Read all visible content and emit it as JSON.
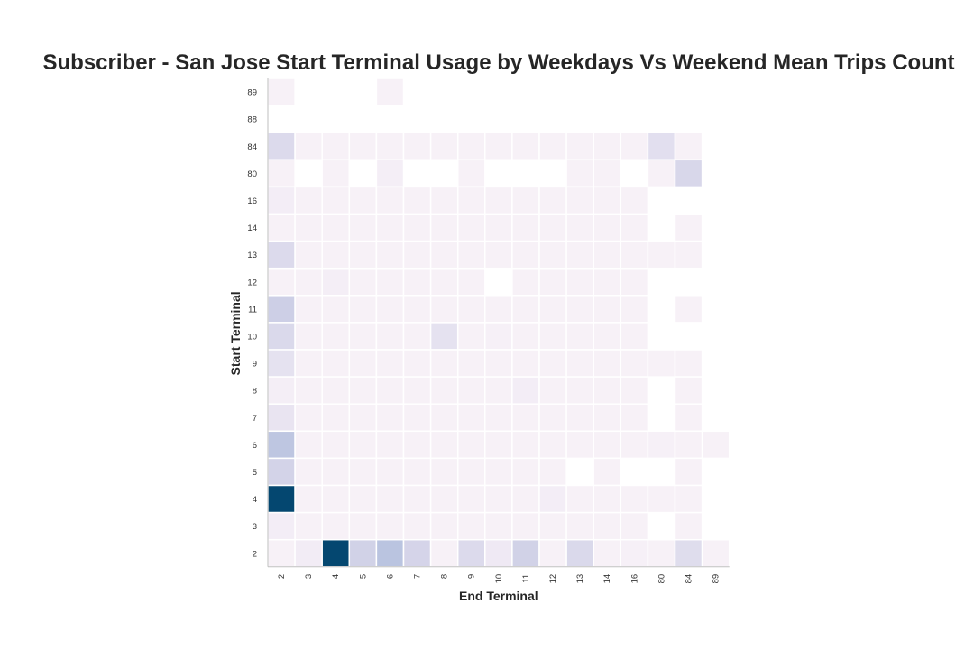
{
  "chart_data": {
    "type": "heatmap",
    "title": "Subscriber - San Jose Start Terminal Usage by Weekdays Vs Weekend Mean Trips Count",
    "xlabel": "End Terminal",
    "ylabel": "Start Terminal",
    "x_categories": [
      "2",
      "3",
      "4",
      "5",
      "6",
      "7",
      "8",
      "9",
      "10",
      "11",
      "12",
      "13",
      "14",
      "16",
      "80",
      "84",
      "89"
    ],
    "y_categories": [
      "89",
      "88",
      "84",
      "80",
      "16",
      "14",
      "13",
      "12",
      "11",
      "10",
      "9",
      "8",
      "7",
      "6",
      "5",
      "4",
      "3",
      "2"
    ],
    "values": [
      [
        1,
        null,
        null,
        null,
        1,
        null,
        null,
        null,
        null,
        null,
        null,
        null,
        null,
        null,
        null,
        null,
        null
      ],
      [
        null,
        null,
        null,
        null,
        null,
        null,
        null,
        null,
        null,
        null,
        null,
        null,
        null,
        null,
        null,
        null,
        null
      ],
      [
        12,
        1,
        1,
        1,
        1,
        1,
        1,
        1,
        1,
        1,
        1,
        1,
        1,
        1,
        10,
        1,
        null
      ],
      [
        1,
        null,
        1,
        null,
        3,
        null,
        null,
        1,
        null,
        null,
        null,
        1,
        1,
        null,
        1,
        14,
        null
      ],
      [
        4,
        1,
        1,
        1,
        1,
        1,
        1,
        1,
        1,
        1,
        1,
        1,
        1,
        1,
        null,
        null,
        null
      ],
      [
        1,
        1,
        1,
        1,
        1,
        1,
        1,
        1,
        1,
        1,
        1,
        1,
        1,
        1,
        null,
        1,
        null
      ],
      [
        12,
        1,
        1,
        1,
        1,
        1,
        1,
        1,
        1,
        1,
        1,
        1,
        1,
        1,
        1,
        1,
        null
      ],
      [
        1,
        1,
        3,
        1,
        1,
        1,
        1,
        1,
        null,
        1,
        1,
        1,
        1,
        1,
        null,
        null,
        null
      ],
      [
        20,
        1,
        1,
        1,
        1,
        1,
        1,
        1,
        1,
        1,
        1,
        1,
        1,
        1,
        null,
        1,
        null
      ],
      [
        13,
        1,
        1,
        1,
        1,
        1,
        9,
        1,
        2,
        1,
        1,
        1,
        1,
        1,
        null,
        null,
        null
      ],
      [
        9,
        1,
        1,
        1,
        1,
        1,
        1,
        1,
        1,
        1,
        1,
        1,
        1,
        1,
        1,
        1,
        null
      ],
      [
        3,
        1,
        1,
        1,
        1,
        1,
        1,
        1,
        1,
        4,
        1,
        1,
        1,
        1,
        null,
        1,
        null
      ],
      [
        8,
        1,
        1,
        1,
        1,
        1,
        1,
        1,
        1,
        1,
        1,
        1,
        1,
        1,
        null,
        1,
        null
      ],
      [
        28,
        1,
        1,
        1,
        1,
        1,
        1,
        1,
        1,
        1,
        1,
        1,
        1,
        1,
        2,
        1,
        1
      ],
      [
        17,
        1,
        1,
        1,
        1,
        1,
        1,
        1,
        1,
        1,
        1,
        null,
        1,
        null,
        null,
        1,
        null
      ],
      [
        100,
        1,
        1,
        1,
        1,
        1,
        1,
        1,
        1,
        1,
        4,
        1,
        1,
        1,
        1,
        1,
        null
      ],
      [
        4,
        1,
        1,
        1,
        1,
        1,
        1,
        1,
        1,
        1,
        1,
        1,
        1,
        1,
        null,
        1,
        null
      ],
      [
        1,
        5,
        100,
        18,
        30,
        16,
        1,
        12,
        6,
        18,
        1,
        13,
        1,
        2,
        1,
        11,
        1
      ]
    ],
    "colormap": "PuBu",
    "vmin": 0,
    "vmax": 100,
    "colorbar": false
  }
}
